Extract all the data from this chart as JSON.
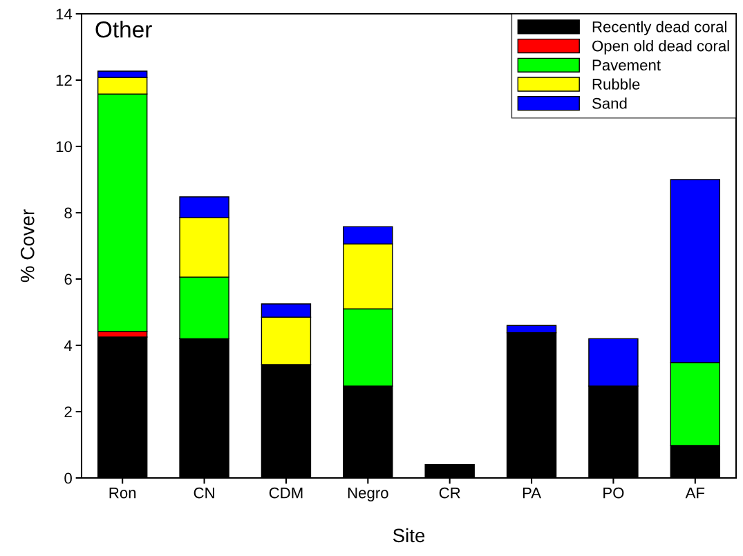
{
  "chart_data": {
    "type": "bar",
    "stacked": true,
    "title": "Other",
    "xlabel": "Site",
    "ylabel": "% Cover",
    "categories": [
      "Ron",
      "CN",
      "CDM",
      "Negro",
      "CR",
      "PA",
      "PO",
      "AF"
    ],
    "series": [
      {
        "name": "Recently dead coral",
        "color": "#000000",
        "values": [
          4.25,
          4.2,
          3.42,
          2.77,
          0.4,
          4.38,
          2.77,
          0.98
        ]
      },
      {
        "name": "Open old dead coral",
        "color": "#ff0000",
        "values": [
          0.17,
          0,
          0,
          0,
          0,
          0,
          0,
          0
        ]
      },
      {
        "name": "Pavement",
        "color": "#00ff00",
        "values": [
          7.16,
          1.86,
          0,
          2.33,
          0,
          0,
          0,
          2.5
        ]
      },
      {
        "name": "Rubble",
        "color": "#ffff00",
        "values": [
          0.5,
          1.79,
          1.43,
          1.96,
          0,
          0,
          0,
          0
        ]
      },
      {
        "name": "Sand",
        "color": "#0000ff",
        "values": [
          0.19,
          0.63,
          0.4,
          0.52,
          0,
          0.22,
          1.43,
          5.52
        ]
      }
    ],
    "ylim": [
      0,
      14
    ],
    "yticks": [
      0,
      2,
      4,
      6,
      8,
      10,
      12,
      14
    ],
    "grid": false,
    "legend": "top right"
  }
}
